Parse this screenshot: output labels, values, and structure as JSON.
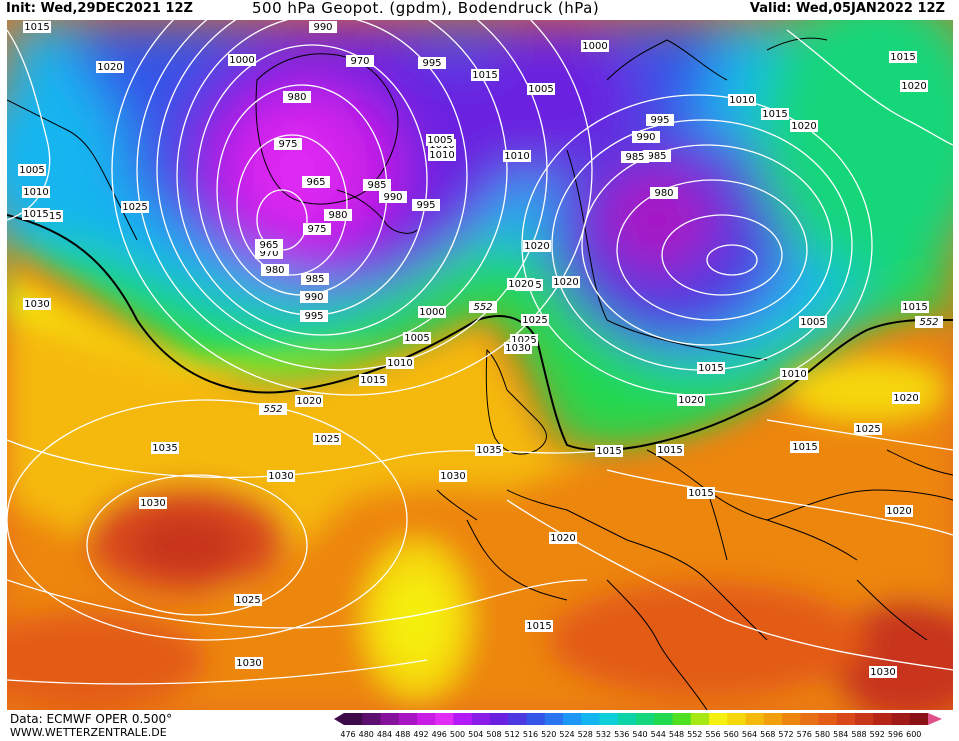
{
  "header": {
    "init": "Init: Wed,29DEC2021 12Z",
    "title": "500 hPa Geopot. (gpdm), Bodendruck (hPa)",
    "valid": "Valid: Wed,05JAN2022 12Z"
  },
  "footer": {
    "data_source": "Data: ECMWF OPER 0.500°",
    "url": "WWW.WETTERZENTRALE.DE"
  },
  "colors": {
    "land_line": "#000000",
    "isobar": "#ffffff",
    "contour_552": "#000000"
  },
  "color_scale": {
    "labels": [
      "476",
      "480",
      "484",
      "488",
      "492",
      "496",
      "500",
      "504",
      "508",
      "512",
      "516",
      "520",
      "524",
      "528",
      "532",
      "536",
      "540",
      "544",
      "548",
      "552",
      "556",
      "560",
      "564",
      "568",
      "572",
      "576",
      "580",
      "584",
      "588",
      "592",
      "596",
      "600"
    ],
    "colors": [
      "#3d0a4a",
      "#5c0f6e",
      "#85129b",
      "#a816c4",
      "#c91de6",
      "#e02cf5",
      "#b41af5",
      "#8a1de8",
      "#6b22e0",
      "#4c3ae0",
      "#3355e8",
      "#2a74f0",
      "#1d97f5",
      "#12b5f0",
      "#0ccfd8",
      "#0cd4a8",
      "#14d67a",
      "#21d94e",
      "#4ee021",
      "#a5e814",
      "#f5f010",
      "#f5d70c",
      "#f5b90c",
      "#f29f0c",
      "#ed860f",
      "#e87014",
      "#e35c17",
      "#d9481a",
      "#c8361a",
      "#b52617",
      "#a01a17",
      "#8a1217"
    ]
  },
  "map_labels": {
    "isobars": [
      "1015",
      "1020",
      "1000",
      "990",
      "970",
      "995",
      "1015",
      "1005",
      "1000",
      "980",
      "975",
      "965",
      "985",
      "990",
      "980",
      "975",
      "995",
      "1010",
      "1010",
      "1005",
      "1010",
      "1015",
      "1025",
      "985",
      "970",
      "965",
      "980",
      "985",
      "990",
      "995",
      "1000",
      "1005",
      "1010",
      "1015",
      "1020",
      "1025",
      "1035",
      "1030",
      "1035",
      "1030",
      "1030",
      "1025",
      "1030",
      "1020",
      "1025",
      "1015",
      "1020",
      "1015",
      "1010",
      "1005",
      "995",
      "990",
      "985",
      "980",
      "1015",
      "1020",
      "1010",
      "1015",
      "1020",
      "1015",
      "1020",
      "1015",
      "1020",
      "1025",
      "1015",
      "1015",
      "1020",
      "1015",
      "1020",
      "1020",
      "1030",
      "1025",
      "1015",
      "1020",
      "1030",
      "1020",
      "1005",
      "1010",
      "1015",
      "1030"
    ],
    "contour_552": [
      "552",
      "552",
      "552"
    ]
  }
}
